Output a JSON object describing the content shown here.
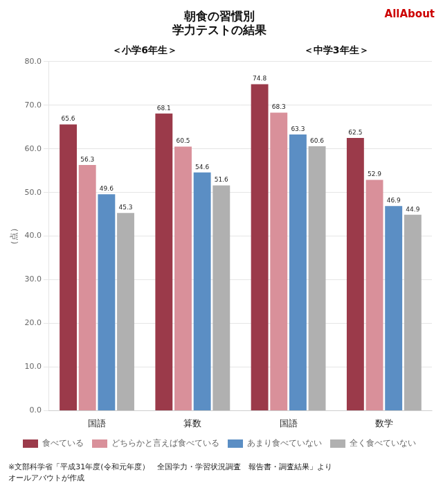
{
  "chart_data": {
    "type": "bar",
    "title": [
      "朝食の習慣別",
      "学力テストの結果"
    ],
    "subtitle": [
      "＜小学6年生＞",
      "＜中学3年生＞"
    ],
    "ylabel": "（点）",
    "categories": [
      "国語",
      "算数",
      "国語",
      "数学"
    ],
    "series": [
      {
        "name": "食べている",
        "color": "#9b3a4a",
        "values": [
          65.6,
          68.1,
          74.8,
          62.5
        ]
      },
      {
        "name": "どちらかと言えば食べている",
        "color": "#d9909a",
        "values": [
          56.3,
          60.5,
          68.3,
          52.9
        ]
      },
      {
        "name": "あまり食べていない",
        "color": "#5b8ec4",
        "values": [
          49.6,
          54.6,
          63.3,
          46.9
        ]
      },
      {
        "name": "全く食べていない",
        "color": "#b0b0b0",
        "values": [
          45.3,
          51.6,
          60.6,
          44.9
        ]
      }
    ],
    "ylim": [
      0,
      80
    ],
    "yticks": [
      {
        "value": 0,
        "label": "0.0"
      },
      {
        "value": 10,
        "label": "10.0"
      },
      {
        "value": 20,
        "label": "20.0"
      },
      {
        "value": 30,
        "label": "30.0"
      },
      {
        "value": 40,
        "label": "40.0"
      },
      {
        "value": 50,
        "label": "50.0"
      },
      {
        "value": 60,
        "label": "60.0"
      },
      {
        "value": 70,
        "label": "70.0"
      },
      {
        "value": 80,
        "label": "80.0"
      }
    ],
    "grid": "y",
    "legend": "bottom",
    "data_labels": true,
    "annotations": [
      "※文部科学省「平成31年度(令和元年度）　全国学力・学習状況調査　報告書・調査結果」より",
      "オールアバウトが作成",
      "AllAbout"
    ]
  }
}
